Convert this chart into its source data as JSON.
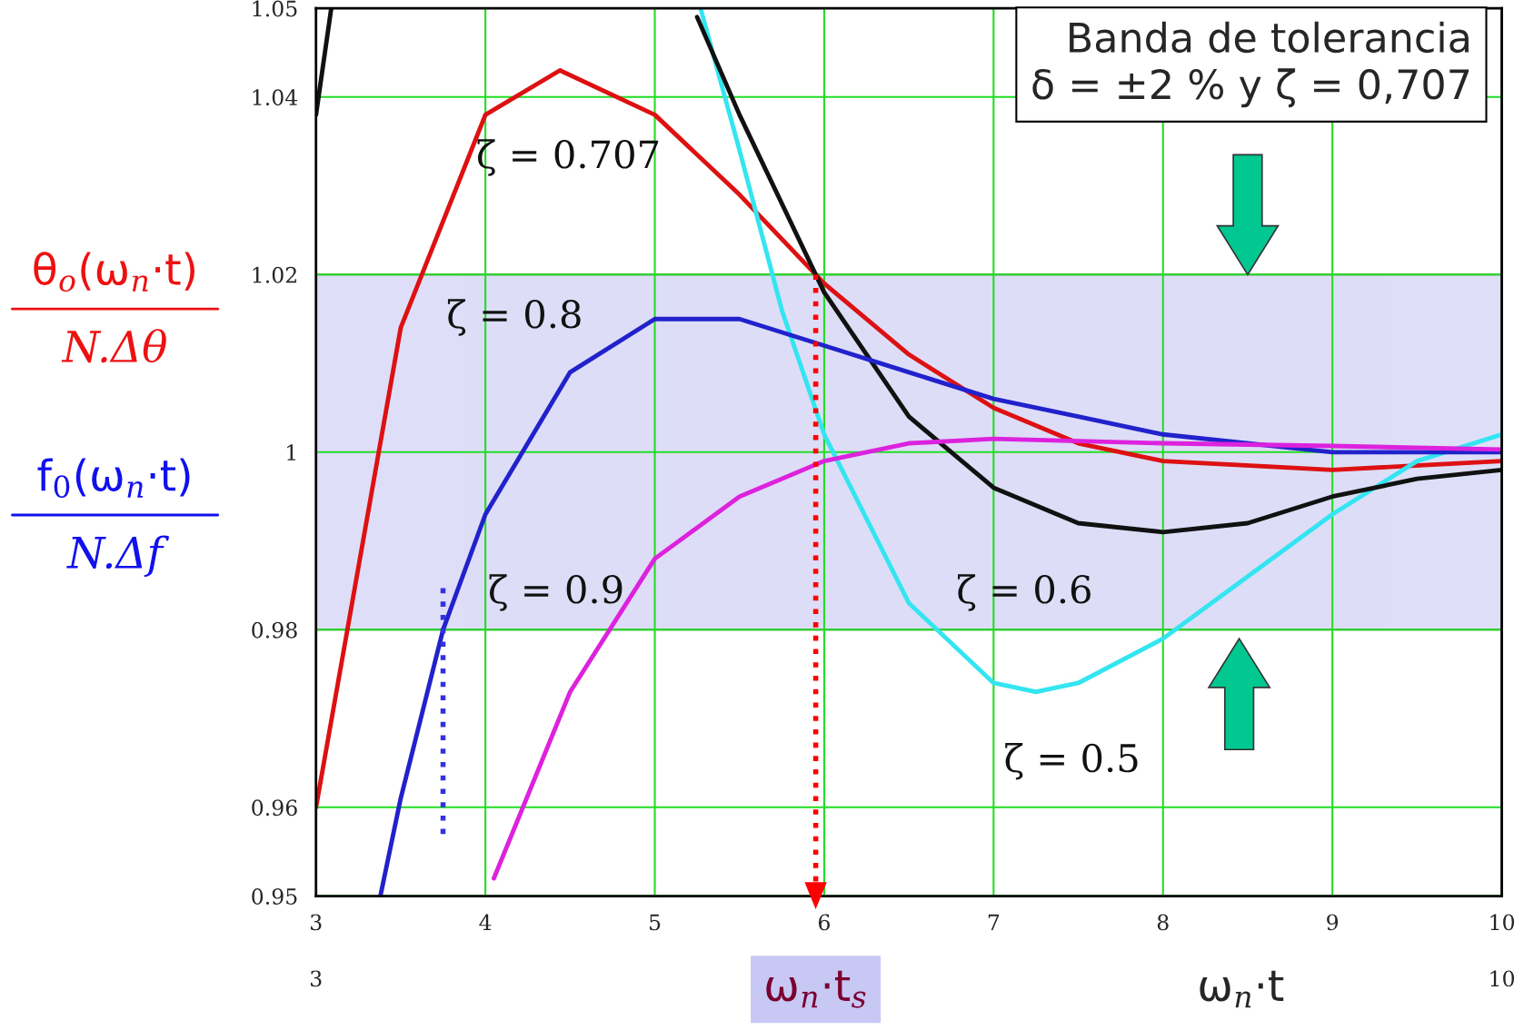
{
  "chart_data": {
    "type": "line",
    "xlabel": "ω$_{n}$·t",
    "ylabel": "θ$_{o}$(ω$_{n}$·t)\nN.Δθ\nf$_{0}$(ω$_{n}$·t)\nN.Δf",
    "xlim": [
      3,
      10
    ],
    "ylim": [
      0.95,
      1.05
    ],
    "xticks": [
      3,
      4,
      5,
      6,
      7,
      8,
      9,
      10
    ],
    "yticks": [
      0.95,
      0.96,
      0.98,
      {
        "value": 1,
        "label": "1"
      },
      1.02,
      1.04,
      1.05
    ],
    "grid": true,
    "marker": "none",
    "line_style": "solid",
    "series": [
      {
        "color": "#dd1111",
        "x": [
          3,
          3.5,
          4,
          4.44,
          5,
          5.5,
          6,
          6.5,
          7,
          7.5,
          8,
          9,
          10
        ],
        "values": [
          0.96,
          1.014,
          1.038,
          1.043,
          1.038,
          1.029,
          1.019,
          1.011,
          1.005,
          1.001,
          0.999,
          0.998,
          0.999
        ]
      },
      {
        "color": "#33e5f0",
        "x": [
          5.27,
          5.5,
          5.75,
          6,
          6.5,
          7,
          7.25,
          7.5,
          8,
          8.5,
          9,
          9.5,
          10
        ],
        "values": [
          1.05,
          1.034,
          1.016,
          1.002,
          0.983,
          0.974,
          0.973,
          0.974,
          0.979,
          0.986,
          0.993,
          0.999,
          1.002
        ]
      },
      {
        "color": "#111111",
        "x": [
          3,
          3.09,
          3.1,
          5.25,
          5.5,
          6,
          6.5,
          7,
          7.5,
          8,
          8.5,
          9,
          9.5,
          10
        ],
        "values": [
          1.038,
          1.05,
          null,
          1.049,
          1.038,
          1.018,
          1.004,
          0.996,
          0.992,
          0.991,
          0.992,
          0.995,
          0.997,
          0.998
        ]
      },
      {
        "color": "#2222cc",
        "x": [
          3.38,
          3.5,
          3.75,
          4,
          4.5,
          5,
          5.5,
          6,
          6.5,
          7,
          7.5,
          8,
          9,
          10
        ],
        "values": [
          0.95,
          0.961,
          0.98,
          0.993,
          1.009,
          1.015,
          1.015,
          1.012,
          1.009,
          1.006,
          1.004,
          1.002,
          1.0,
          1.0
        ]
      },
      {
        "color": "#dd22dd",
        "x": [
          4.05,
          4.5,
          5,
          5.5,
          6,
          6.5,
          7,
          8,
          9,
          10
        ],
        "values": [
          0.952,
          0.973,
          0.988,
          0.995,
          0.999,
          1.001,
          1.0015,
          1.001,
          1.0007,
          1.0003
        ]
      }
    ],
    "bands": [
      {
        "axis": "y",
        "from": 0.98,
        "to": 1.02,
        "color": "#c8c8f5",
        "label": "Banda de tolerancia\nδ = ±2 % y ζ = 0,707"
      }
    ],
    "ref_lines": [
      {
        "axis": "x",
        "value": 5.95,
        "label": "ω$_{n}$·t$_{s}$",
        "color": "#ff0000",
        "line_style": "dotted"
      }
    ],
    "annotations": [
      "ζ = 0.707",
      "ζ = 0.8",
      "ζ = 0.9",
      "ζ = 0.6",
      "ζ = 0.5",
      "3",
      "10"
    ]
  }
}
